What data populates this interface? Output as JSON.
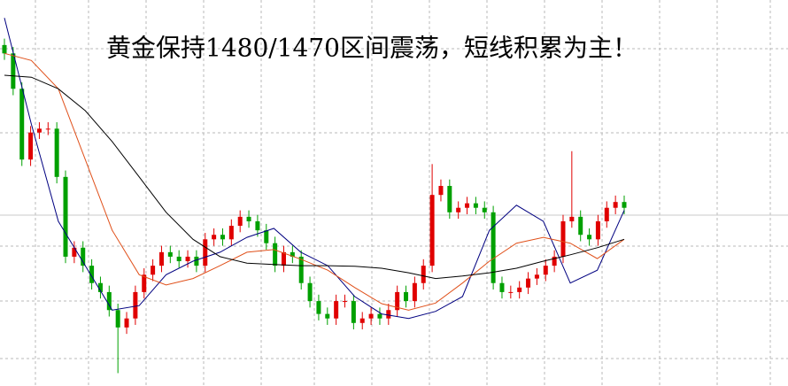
{
  "chart_data": {
    "type": "candlestick",
    "title": "黄金保持1480/1470区间震荡，短线积累为主！",
    "up_color": "#e00000",
    "down_color": "#00a000",
    "ylim": [
      1440,
      1500
    ],
    "open": [
      1493.0,
      1491.7,
      1486.2,
      1475.2,
      1479.4,
      1480.0,
      1480.0,
      1472.5,
      1460.1,
      1461.5,
      1458.7,
      1456.0,
      1454.6,
      1451.8,
      1449.1,
      1450.5,
      1454.6,
      1457.3,
      1458.7,
      1460.8,
      1460.1,
      1459.4,
      1460.1,
      1458.7,
      1462.8,
      1463.5,
      1462.8,
      1464.9,
      1466.3,
      1465.6,
      1464.2,
      1462.2,
      1458.7,
      1460.8,
      1460.1,
      1456.0,
      1453.2,
      1451.2,
      1450.5,
      1453.2,
      1453.2,
      1449.8,
      1450.5,
      1451.2,
      1450.5,
      1451.8,
      1454.6,
      1453.2,
      1456.0,
      1458.7,
      1469.7,
      1471.1,
      1467.0,
      1467.7,
      1468.4,
      1467.7,
      1467.0,
      1456.0,
      1454.6,
      1454.6,
      1455.3,
      1456.7,
      1457.3,
      1458.7,
      1460.1,
      1465.6,
      1466.3,
      1463.5,
      1462.8,
      1465.6,
      1467.7,
      1468.6
    ],
    "high": [
      1494.0,
      1492.7,
      1487.2,
      1480.4,
      1481.0,
      1481.0,
      1481.0,
      1473.5,
      1462.5,
      1462.5,
      1459.7,
      1457.0,
      1455.6,
      1452.8,
      1451.5,
      1455.6,
      1458.3,
      1459.7,
      1461.8,
      1461.8,
      1461.1,
      1461.1,
      1461.1,
      1463.8,
      1464.5,
      1464.5,
      1465.9,
      1467.3,
      1467.3,
      1466.6,
      1465.2,
      1463.2,
      1461.8,
      1461.8,
      1461.1,
      1457.0,
      1454.2,
      1452.2,
      1454.2,
      1454.2,
      1454.2,
      1451.5,
      1452.2,
      1452.2,
      1452.8,
      1455.6,
      1455.6,
      1457.0,
      1459.7,
      1474.5,
      1472.1,
      1472.1,
      1468.7,
      1469.4,
      1469.4,
      1468.7,
      1468.0,
      1457.0,
      1455.6,
      1456.3,
      1457.7,
      1458.3,
      1459.7,
      1461.1,
      1466.6,
      1476.5,
      1467.3,
      1464.5,
      1466.6,
      1468.7,
      1469.6,
      1469.6
    ],
    "low": [
      1490.7,
      1485.2,
      1474.2,
      1474.2,
      1478.4,
      1479.0,
      1471.5,
      1459.1,
      1459.1,
      1457.7,
      1455.0,
      1453.6,
      1450.8,
      1442.0,
      1448.1,
      1449.5,
      1453.6,
      1456.3,
      1457.7,
      1459.1,
      1458.4,
      1458.4,
      1457.7,
      1457.7,
      1461.8,
      1461.8,
      1461.8,
      1463.9,
      1464.6,
      1463.2,
      1461.2,
      1457.7,
      1457.7,
      1459.1,
      1455.0,
      1452.2,
      1450.2,
      1449.5,
      1449.5,
      1452.2,
      1448.8,
      1448.8,
      1449.5,
      1449.5,
      1449.5,
      1450.8,
      1452.2,
      1452.2,
      1455.0,
      1457.7,
      1468.7,
      1466.0,
      1466.0,
      1466.7,
      1466.7,
      1466.0,
      1455.0,
      1453.6,
      1453.6,
      1453.6,
      1454.3,
      1455.7,
      1456.3,
      1457.7,
      1459.1,
      1464.6,
      1462.5,
      1461.8,
      1461.8,
      1464.6,
      1466.7,
      1466.7
    ],
    "close": [
      1491.7,
      1486.2,
      1475.2,
      1479.4,
      1480.0,
      1480.0,
      1472.5,
      1460.1,
      1461.5,
      1458.7,
      1456.0,
      1454.6,
      1451.8,
      1449.1,
      1450.5,
      1454.6,
      1457.3,
      1458.7,
      1460.8,
      1460.1,
      1459.4,
      1460.1,
      1458.7,
      1462.8,
      1463.5,
      1462.8,
      1464.9,
      1466.3,
      1465.6,
      1464.2,
      1462.2,
      1458.7,
      1460.8,
      1460.1,
      1456.0,
      1453.2,
      1451.2,
      1450.5,
      1453.2,
      1453.2,
      1449.8,
      1450.5,
      1451.2,
      1450.5,
      1451.8,
      1454.6,
      1453.2,
      1456.0,
      1458.7,
      1469.7,
      1471.1,
      1467.0,
      1467.7,
      1468.4,
      1467.7,
      1467.0,
      1456.0,
      1454.6,
      1454.6,
      1455.3,
      1456.7,
      1457.3,
      1458.7,
      1460.1,
      1465.6,
      1466.3,
      1463.5,
      1462.8,
      1465.6,
      1467.7,
      1468.6,
      1467.7
    ],
    "lines": [
      {
        "color": "#000080",
        "values": [
          1497.2,
          1480.7,
          1465.6,
          1458.7,
          1451.8,
          1452.5,
          1457.3,
          1459.4,
          1460.8,
          1463.1,
          1464.5,
          1460.8,
          1458.7,
          1453.9,
          1451.2,
          1450.5,
          1451.6,
          1453.9,
          1464.2,
          1468.1,
          1465.6,
          1456.0,
          1458.0,
          1467.3
        ]
      },
      {
        "color": "#e0501a",
        "values": [
          1491.7,
          1490.6,
          1486.2,
          1475.2,
          1464.2,
          1457.3,
          1455.7,
          1456.7,
          1458.7,
          1460.8,
          1461.2,
          1459.7,
          1458.0,
          1455.3,
          1452.8,
          1451.8,
          1452.9,
          1456.0,
          1459.4,
          1462.2,
          1463.1,
          1462.2,
          1459.8,
          1462.8
        ]
      },
      {
        "color": "#000000",
        "values": [
          1488.3,
          1488.0,
          1486.2,
          1482.8,
          1478.0,
          1472.5,
          1467.0,
          1462.8,
          1460.1,
          1459.1,
          1458.9,
          1458.7,
          1458.7,
          1458.6,
          1458.3,
          1457.6,
          1456.7,
          1457.1,
          1457.6,
          1458.3,
          1459.4,
          1460.4,
          1461.5,
          1462.8
        ]
      }
    ]
  }
}
